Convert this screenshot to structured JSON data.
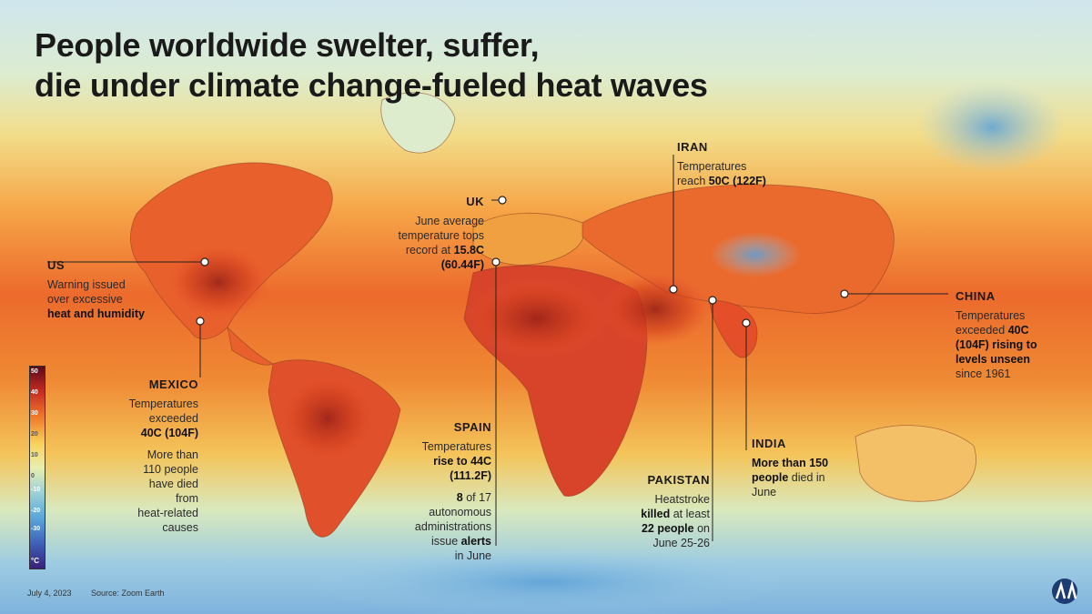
{
  "title": [
    "People worldwide swelter, suffer,",
    "die under climate change-fueled heat waves"
  ],
  "legend": {
    "unit": "°C",
    "ticks": [
      "50",
      "40",
      "30",
      "20",
      "10",
      "0",
      "-10",
      "-20",
      "-30"
    ]
  },
  "callouts": {
    "us": {
      "name": "US",
      "l1": "Warning issued",
      "l2": "over excessive",
      "l3": "heat and humidity"
    },
    "mexico": {
      "name": "MEXICO",
      "l1": "Temperatures",
      "l2": "exceeded",
      "l3": "40C (104F)",
      "l4": "More than",
      "l5": "110 people",
      "l6": "have died",
      "l7": "from",
      "l8": "heat-related",
      "l9": "causes"
    },
    "uk": {
      "name": "UK",
      "l1": "June average",
      "l2": "temperature tops",
      "l3a": "record at ",
      "l3b": "15.8C",
      "l4": "(60.44F)"
    },
    "spain": {
      "name": "SPAIN",
      "l1": "Temperatures",
      "l2": "rise to 44C",
      "l3": "(111.2F)",
      "l4a": "8",
      "l4b": " of 17",
      "l5": "autonomous",
      "l6": "administrations",
      "l7a": "issue ",
      "l7b": "alerts",
      "l8": "in June"
    },
    "iran": {
      "name": "IRAN",
      "l1": "Temperatures",
      "l2a": "reach ",
      "l2b": "50C (122F)"
    },
    "pakistan": {
      "name": "PAKISTAN",
      "l1": "Heatstroke",
      "l2a": "killed",
      "l2b": " at least",
      "l3a": "22 people",
      "l3b": " on",
      "l4": "June 25-26"
    },
    "india": {
      "name": "INDIA",
      "l1": "More than 150",
      "l2a": "people",
      "l2b": " died in",
      "l3": "June"
    },
    "china": {
      "name": "CHINA",
      "l1": "Temperatures",
      "l2a": "exceeded ",
      "l2b": "40C",
      "l3": "(104F) rising to",
      "l4": "levels unseen",
      "l5": "since 1961"
    }
  },
  "footer": {
    "date": "July 4, 2023",
    "source": "Source: Zoom Earth"
  },
  "logo": "AA",
  "colors": {
    "hot": "#7a1a1a",
    "warm": "#e8542a",
    "mild": "#f6c84a",
    "cool": "#bfe3c8",
    "cold": "#7db7e0",
    "coldest": "#3a3f9a"
  }
}
